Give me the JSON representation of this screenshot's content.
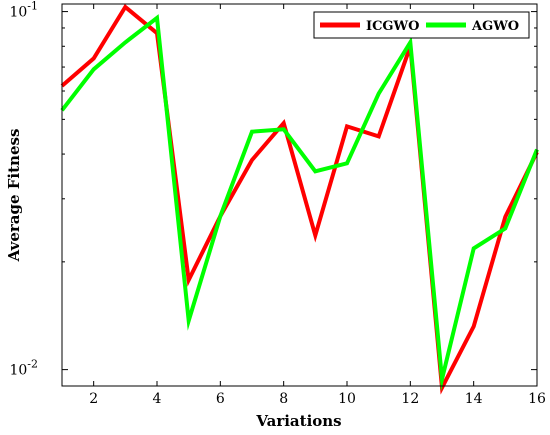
{
  "chart_data": {
    "type": "line",
    "title": "",
    "xlabel": "Variations",
    "ylabel": "Average Fitness",
    "xlim": [
      1,
      16
    ],
    "ylim": [
      0.009,
      0.105
    ],
    "yscale": "log",
    "x": [
      1,
      2,
      3,
      4,
      5,
      6,
      7,
      8,
      9,
      10,
      11,
      12,
      13,
      14,
      15,
      16
    ],
    "x_ticks": [
      2,
      4,
      6,
      8,
      10,
      12,
      14,
      16
    ],
    "x_tick_labels": [
      "2",
      "4",
      "6",
      "8",
      "10",
      "12",
      "14",
      "16"
    ],
    "y_ticks": [
      {
        "value": 0.1,
        "base": "10",
        "exp": "-1"
      },
      {
        "value": 0.01,
        "base": "10",
        "exp": "-2"
      }
    ],
    "legend_position": "top-right",
    "grid": false,
    "series": [
      {
        "name": "ICGWO",
        "color": "#ff0000",
        "values": [
          0.062,
          0.074,
          0.103,
          0.087,
          0.0178,
          0.0268,
          0.0385,
          0.0488,
          0.0237,
          0.0478,
          0.0448,
          0.08,
          0.0089,
          0.0132,
          0.0267,
          0.0405
        ]
      },
      {
        "name": "AGWO",
        "color": "#00ff00",
        "values": [
          0.053,
          0.069,
          0.082,
          0.096,
          0.0137,
          0.0268,
          0.0462,
          0.0469,
          0.0358,
          0.0377,
          0.059,
          0.082,
          0.0094,
          0.0218,
          0.0248,
          0.0412
        ]
      }
    ]
  }
}
